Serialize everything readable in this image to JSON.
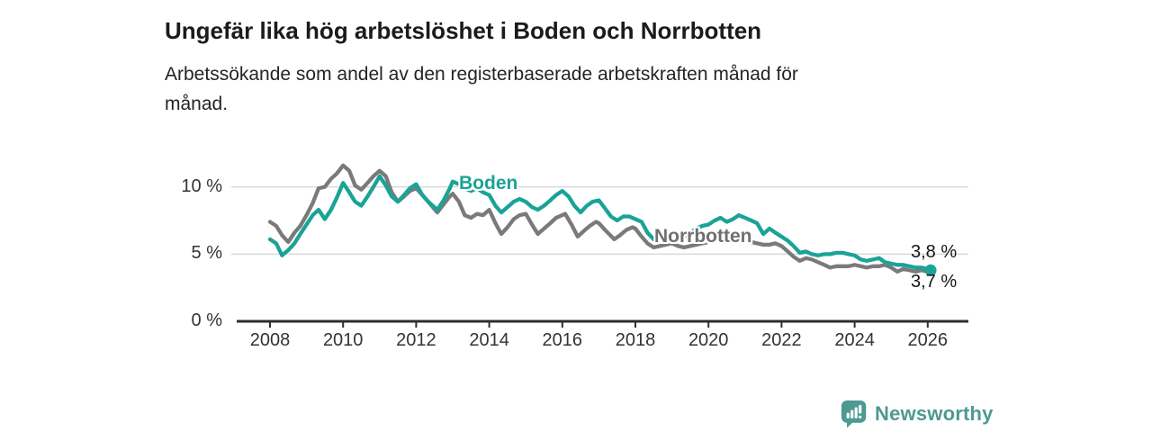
{
  "header": {
    "title": "Ungefär lika hög arbetslöshet i Boden och Norrbotten",
    "subtitle": "Arbetssökande som andel av den registerbaserade arbetskraften månad för\nmånad."
  },
  "chart_data": {
    "type": "line",
    "title": "Ungefär lika hög arbetslöshet i Boden och Norrbotten",
    "subtitle": "Arbetssökande som andel av den registerbaserade arbetskraften månad för månad.",
    "unit": "%",
    "xlabel": "",
    "ylabel": "",
    "x_range": [
      2007.9,
      2026.4
    ],
    "ylim": [
      0,
      12.3
    ],
    "grid": "horizontal",
    "legend_position": "inline-labels",
    "axis_color": "#2e2e2e",
    "grid_color": "#d9d9d9",
    "y_ticks": [
      {
        "value": 0,
        "label": "0 %"
      },
      {
        "value": 5,
        "label": "5 %"
      },
      {
        "value": 10,
        "label": "10 %"
      }
    ],
    "x_ticks": [
      2008,
      2010,
      2012,
      2014,
      2016,
      2018,
      2020,
      2022,
      2024,
      2026
    ],
    "series": [
      {
        "name": "Boden",
        "color": "#1aa396",
        "end_dot": true,
        "end_label": "3,8 %",
        "end_value": 3.8,
        "points": [
          [
            2008.0,
            6.1
          ],
          [
            2008.17,
            5.8
          ],
          [
            2008.33,
            4.9
          ],
          [
            2008.5,
            5.3
          ],
          [
            2008.67,
            5.8
          ],
          [
            2008.83,
            6.5
          ],
          [
            2009.0,
            7.2
          ],
          [
            2009.17,
            7.9
          ],
          [
            2009.33,
            8.3
          ],
          [
            2009.5,
            7.6
          ],
          [
            2009.67,
            8.3
          ],
          [
            2009.83,
            9.2
          ],
          [
            2010.0,
            10.3
          ],
          [
            2010.17,
            9.6
          ],
          [
            2010.33,
            8.9
          ],
          [
            2010.5,
            8.6
          ],
          [
            2010.67,
            9.3
          ],
          [
            2010.83,
            10.0
          ],
          [
            2011.0,
            10.8
          ],
          [
            2011.17,
            10.1
          ],
          [
            2011.33,
            9.3
          ],
          [
            2011.5,
            8.9
          ],
          [
            2011.67,
            9.4
          ],
          [
            2011.83,
            9.9
          ],
          [
            2012.0,
            10.2
          ],
          [
            2012.17,
            9.4
          ],
          [
            2012.33,
            8.9
          ],
          [
            2012.58,
            8.3
          ],
          [
            2012.75,
            9.0
          ],
          [
            2012.92,
            9.9
          ],
          [
            2013.0,
            10.4
          ],
          [
            2013.17,
            10.2
          ],
          [
            2013.33,
            9.9
          ],
          [
            2013.5,
            9.7
          ],
          [
            2013.67,
            9.9
          ],
          [
            2013.83,
            9.6
          ],
          [
            2014.0,
            9.4
          ],
          [
            2014.17,
            8.6
          ],
          [
            2014.33,
            8.1
          ],
          [
            2014.5,
            8.5
          ],
          [
            2014.67,
            8.9
          ],
          [
            2014.83,
            9.1
          ],
          [
            2015.0,
            8.9
          ],
          [
            2015.17,
            8.5
          ],
          [
            2015.33,
            8.3
          ],
          [
            2015.5,
            8.6
          ],
          [
            2015.67,
            9.0
          ],
          [
            2015.83,
            9.4
          ],
          [
            2016.0,
            9.7
          ],
          [
            2016.17,
            9.3
          ],
          [
            2016.33,
            8.6
          ],
          [
            2016.5,
            8.1
          ],
          [
            2016.67,
            8.6
          ],
          [
            2016.83,
            8.9
          ],
          [
            2017.0,
            9.0
          ],
          [
            2017.17,
            8.4
          ],
          [
            2017.33,
            7.8
          ],
          [
            2017.5,
            7.5
          ],
          [
            2017.67,
            7.8
          ],
          [
            2017.83,
            7.8
          ],
          [
            2018.0,
            7.6
          ],
          [
            2018.17,
            7.4
          ],
          [
            2018.33,
            6.6
          ],
          [
            2018.5,
            6.1
          ],
          [
            2018.67,
            6.3
          ],
          [
            2018.83,
            6.5
          ],
          [
            2019.0,
            6.6
          ],
          [
            2019.17,
            6.4
          ],
          [
            2019.33,
            6.3
          ],
          [
            2019.5,
            6.6
          ],
          [
            2019.67,
            6.9
          ],
          [
            2019.83,
            7.1
          ],
          [
            2020.0,
            7.2
          ],
          [
            2020.17,
            7.5
          ],
          [
            2020.33,
            7.7
          ],
          [
            2020.5,
            7.4
          ],
          [
            2020.67,
            7.6
          ],
          [
            2020.83,
            7.9
          ],
          [
            2021.0,
            7.7
          ],
          [
            2021.17,
            7.5
          ],
          [
            2021.33,
            7.3
          ],
          [
            2021.5,
            6.5
          ],
          [
            2021.67,
            6.9
          ],
          [
            2021.83,
            6.6
          ],
          [
            2022.0,
            6.3
          ],
          [
            2022.17,
            6.0
          ],
          [
            2022.33,
            5.6
          ],
          [
            2022.5,
            5.1
          ],
          [
            2022.67,
            5.2
          ],
          [
            2022.83,
            5.0
          ],
          [
            2023.0,
            4.9
          ],
          [
            2023.17,
            5.0
          ],
          [
            2023.33,
            5.0
          ],
          [
            2023.5,
            5.1
          ],
          [
            2023.67,
            5.1
          ],
          [
            2023.83,
            5.0
          ],
          [
            2024.0,
            4.9
          ],
          [
            2024.17,
            4.6
          ],
          [
            2024.33,
            4.5
          ],
          [
            2024.5,
            4.6
          ],
          [
            2024.67,
            4.7
          ],
          [
            2024.83,
            4.4
          ],
          [
            2025.0,
            4.3
          ],
          [
            2025.17,
            4.2
          ],
          [
            2025.33,
            4.2
          ],
          [
            2025.5,
            4.1
          ],
          [
            2025.67,
            4.0
          ],
          [
            2025.83,
            4.0
          ],
          [
            2026.0,
            3.9
          ],
          [
            2026.08,
            3.8
          ]
        ]
      },
      {
        "name": "Norrbotten",
        "color": "#7a7a7a",
        "end_dot": false,
        "end_label": "3,7 %",
        "end_value": 3.7,
        "points": [
          [
            2008.0,
            7.4
          ],
          [
            2008.17,
            7.1
          ],
          [
            2008.33,
            6.4
          ],
          [
            2008.5,
            5.9
          ],
          [
            2008.67,
            6.6
          ],
          [
            2008.83,
            7.1
          ],
          [
            2009.0,
            7.9
          ],
          [
            2009.17,
            8.8
          ],
          [
            2009.33,
            9.9
          ],
          [
            2009.5,
            10.0
          ],
          [
            2009.67,
            10.6
          ],
          [
            2009.83,
            11.0
          ],
          [
            2010.0,
            11.6
          ],
          [
            2010.17,
            11.2
          ],
          [
            2010.33,
            10.1
          ],
          [
            2010.5,
            9.8
          ],
          [
            2010.67,
            10.3
          ],
          [
            2010.83,
            10.8
          ],
          [
            2011.0,
            11.2
          ],
          [
            2011.17,
            10.8
          ],
          [
            2011.33,
            9.6
          ],
          [
            2011.5,
            8.9
          ],
          [
            2011.67,
            9.3
          ],
          [
            2011.83,
            9.7
          ],
          [
            2012.0,
            9.9
          ],
          [
            2012.17,
            9.4
          ],
          [
            2012.33,
            8.9
          ],
          [
            2012.58,
            8.1
          ],
          [
            2012.75,
            8.7
          ],
          [
            2012.92,
            9.3
          ],
          [
            2013.0,
            9.5
          ],
          [
            2013.17,
            8.9
          ],
          [
            2013.33,
            7.9
          ],
          [
            2013.5,
            7.7
          ],
          [
            2013.67,
            8.0
          ],
          [
            2013.83,
            7.9
          ],
          [
            2014.0,
            8.3
          ],
          [
            2014.17,
            7.3
          ],
          [
            2014.33,
            6.5
          ],
          [
            2014.5,
            7.0
          ],
          [
            2014.67,
            7.6
          ],
          [
            2014.83,
            7.9
          ],
          [
            2015.0,
            8.0
          ],
          [
            2015.17,
            7.2
          ],
          [
            2015.33,
            6.5
          ],
          [
            2015.5,
            6.9
          ],
          [
            2015.67,
            7.3
          ],
          [
            2015.83,
            7.7
          ],
          [
            2016.08,
            8.0
          ],
          [
            2016.25,
            7.2
          ],
          [
            2016.42,
            6.3
          ],
          [
            2016.58,
            6.7
          ],
          [
            2016.75,
            7.1
          ],
          [
            2016.92,
            7.4
          ],
          [
            2017.0,
            7.3
          ],
          [
            2017.17,
            6.8
          ],
          [
            2017.42,
            6.1
          ],
          [
            2017.58,
            6.4
          ],
          [
            2017.75,
            6.8
          ],
          [
            2017.92,
            7.0
          ],
          [
            2018.0,
            6.9
          ],
          [
            2018.17,
            6.3
          ],
          [
            2018.33,
            5.8
          ],
          [
            2018.5,
            5.5
          ],
          [
            2018.67,
            5.6
          ],
          [
            2018.83,
            5.7
          ],
          [
            2019.0,
            5.8
          ],
          [
            2019.17,
            5.6
          ],
          [
            2019.33,
            5.5
          ],
          [
            2019.5,
            5.6
          ],
          [
            2019.67,
            5.7
          ],
          [
            2019.83,
            5.8
          ],
          [
            2020.0,
            5.9
          ],
          [
            2020.17,
            6.1
          ],
          [
            2020.33,
            6.2
          ],
          [
            2020.5,
            6.0
          ],
          [
            2020.67,
            6.1
          ],
          [
            2020.83,
            6.2
          ],
          [
            2021.0,
            6.1
          ],
          [
            2021.17,
            5.9
          ],
          [
            2021.33,
            5.8
          ],
          [
            2021.5,
            5.7
          ],
          [
            2021.67,
            5.7
          ],
          [
            2021.83,
            5.8
          ],
          [
            2022.0,
            5.6
          ],
          [
            2022.17,
            5.2
          ],
          [
            2022.33,
            4.8
          ],
          [
            2022.5,
            4.5
          ],
          [
            2022.67,
            4.7
          ],
          [
            2022.83,
            4.6
          ],
          [
            2023.0,
            4.4
          ],
          [
            2023.17,
            4.2
          ],
          [
            2023.33,
            4.0
          ],
          [
            2023.5,
            4.1
          ],
          [
            2023.67,
            4.1
          ],
          [
            2023.83,
            4.1
          ],
          [
            2024.0,
            4.2
          ],
          [
            2024.17,
            4.1
          ],
          [
            2024.33,
            4.0
          ],
          [
            2024.5,
            4.1
          ],
          [
            2024.67,
            4.1
          ],
          [
            2024.83,
            4.2
          ],
          [
            2025.0,
            4.0
          ],
          [
            2025.17,
            3.7
          ],
          [
            2025.33,
            3.9
          ],
          [
            2025.5,
            3.8
          ],
          [
            2025.67,
            3.7
          ],
          [
            2025.83,
            3.8
          ],
          [
            2026.0,
            3.7
          ],
          [
            2026.08,
            3.7
          ]
        ]
      }
    ]
  },
  "footer": {
    "brand": "Newsworthy",
    "brand_color": "#4c9a92"
  }
}
